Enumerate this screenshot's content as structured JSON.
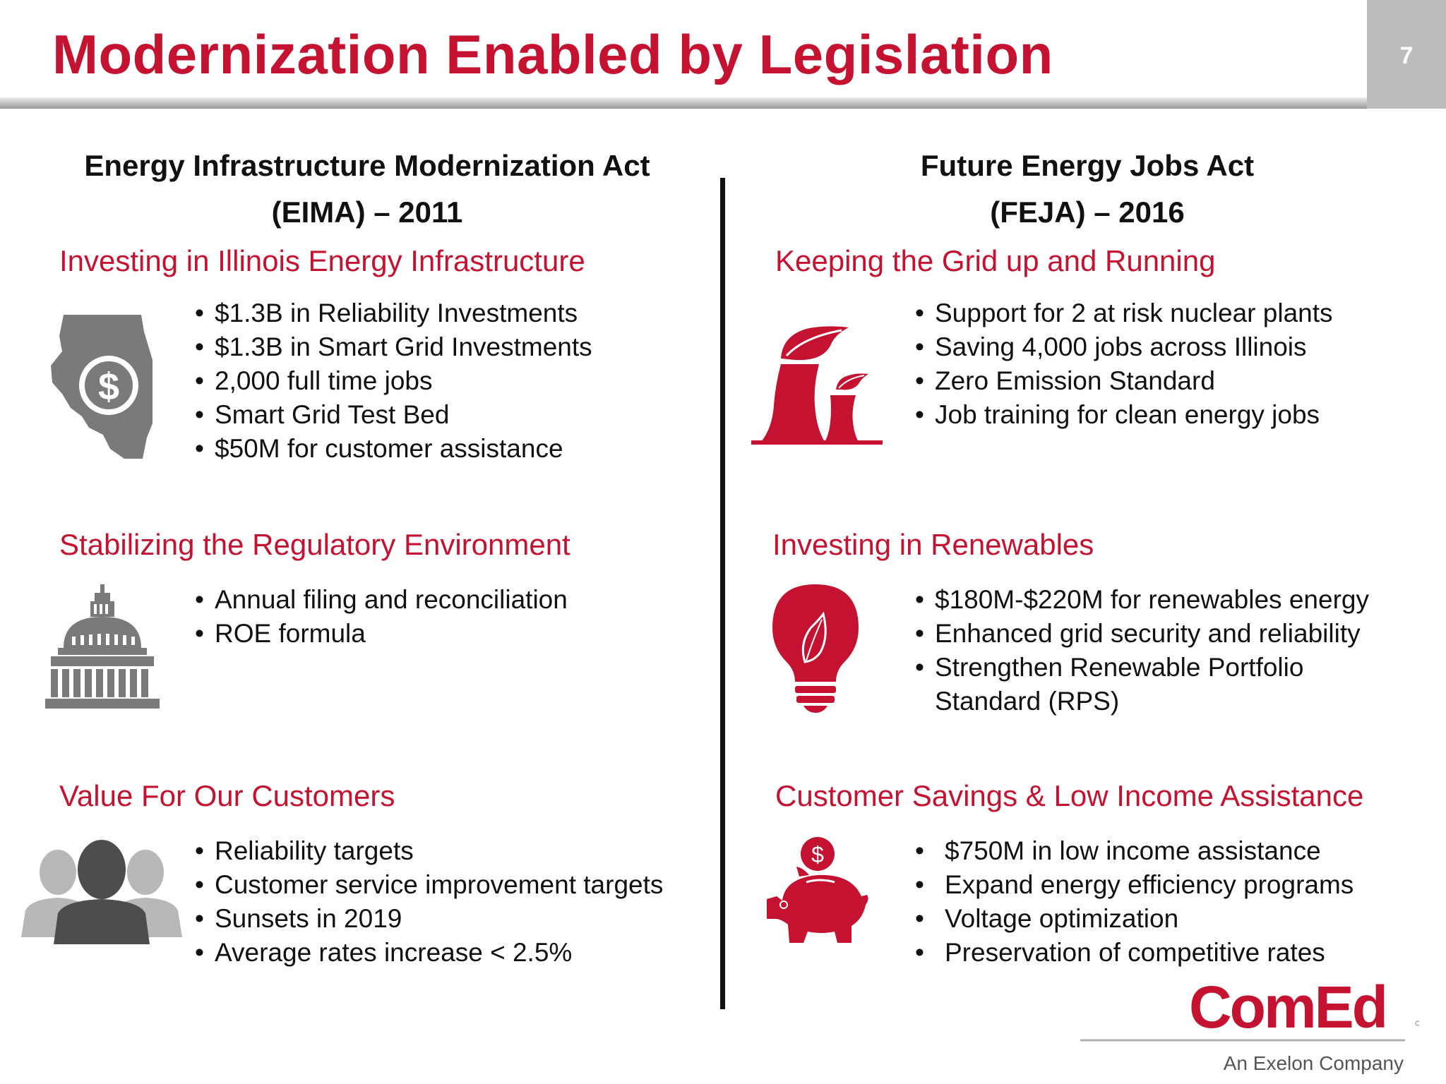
{
  "slide": {
    "title": "Modernization Enabled by Legislation",
    "page_number": "7"
  },
  "left": {
    "heading_line1": "Energy Infrastructure Modernization Act",
    "heading_line2": "(EIMA) – 2011",
    "sections": [
      {
        "title": "Investing in Illinois Energy Infrastructure",
        "icon": "illinois-dollar-icon",
        "bullets": [
          "$1.3B in Reliability Investments",
          "$1.3B in Smart Grid Investments",
          "2,000 full time jobs",
          "Smart Grid Test Bed",
          "$50M for customer assistance"
        ]
      },
      {
        "title": "Stabilizing the Regulatory Environment",
        "icon": "capitol-dome-icon",
        "bullets": [
          "Annual filing and  reconciliation",
          "ROE formula"
        ]
      },
      {
        "title": "Value For Our Customers",
        "icon": "customers-group-icon",
        "bullets": [
          "Reliability targets",
          "Customer service improvement targets",
          "Sunsets in 2019",
          "Average rates increase < 2.5%"
        ]
      }
    ]
  },
  "right": {
    "heading_line1": "Future Energy Jobs Act",
    "heading_line2": "(FEJA) – 2016",
    "sections": [
      {
        "title": "Keeping the Grid up and Running",
        "icon": "cooling-towers-leaf-icon",
        "bullets": [
          "Support for 2 at risk nuclear plants",
          "Saving 4,000 jobs across Illinois",
          "Zero Emission Standard",
          "Job training for clean energy jobs"
        ]
      },
      {
        "title": "Investing in Renewables",
        "icon": "lightbulb-leaf-icon",
        "bullets": [
          "$180M-$220M for renewables energy",
          "Enhanced grid security and reliability",
          "Strengthen Renewable Portfolio",
          "Standard (RPS)"
        ]
      },
      {
        "title": "Customer Savings & Low Income Assistance",
        "icon": "piggy-bank-icon",
        "bullets": [
          "$750M in low income assistance",
          "Expand energy efficiency programs",
          "Voltage optimization",
          "Preservation of competitive rates"
        ]
      }
    ]
  },
  "logo": {
    "name": "ComEd",
    "tagline": "An Exelon Company"
  },
  "colors": {
    "accent": "#c41230",
    "gray_icon": "#7a7a7a"
  }
}
